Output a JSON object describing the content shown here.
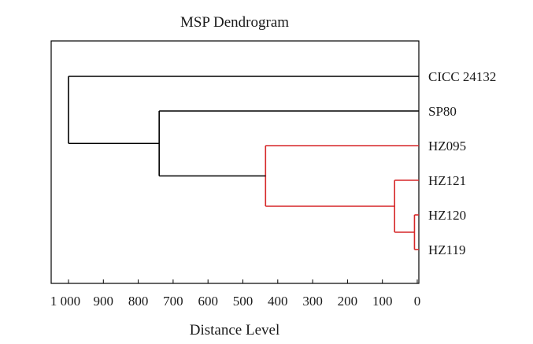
{
  "chart_data": {
    "type": "dendrogram",
    "title": "MSP Dendrogram",
    "xlabel": "Distance Level",
    "xlim": [
      1000,
      0
    ],
    "x_ticks": [
      1000,
      900,
      800,
      700,
      600,
      500,
      400,
      300,
      200,
      100,
      0
    ],
    "x_tick_labels": [
      "1 000",
      "900",
      "800",
      "700",
      "600",
      "500",
      "400",
      "300",
      "200",
      "100",
      "0"
    ],
    "leaves": [
      "CICC 24132",
      "SP80",
      "HZ095",
      "HZ121",
      "HZ120",
      "HZ119"
    ],
    "merges": [
      {
        "left": "HZ120",
        "right": "HZ119",
        "distance": 8,
        "color": "#d62728"
      },
      {
        "left": "HZ121",
        "right": "HZ120+HZ119",
        "distance": 65,
        "color": "#d62728"
      },
      {
        "left": "HZ095",
        "right": "HZ121+HZ120+HZ119",
        "distance": 435,
        "color": "#d62728"
      },
      {
        "left": "SP80",
        "right": "HZ095+HZ121+HZ120+HZ119",
        "distance": 740,
        "color": "#000000"
      },
      {
        "left": "CICC 24132",
        "right": "SP80+HZ095+HZ121+HZ120+HZ119",
        "distance": 1000,
        "color": "#000000"
      }
    ],
    "colors": {
      "cluster": "#d62728",
      "default": "#000000"
    },
    "grid": false
  }
}
